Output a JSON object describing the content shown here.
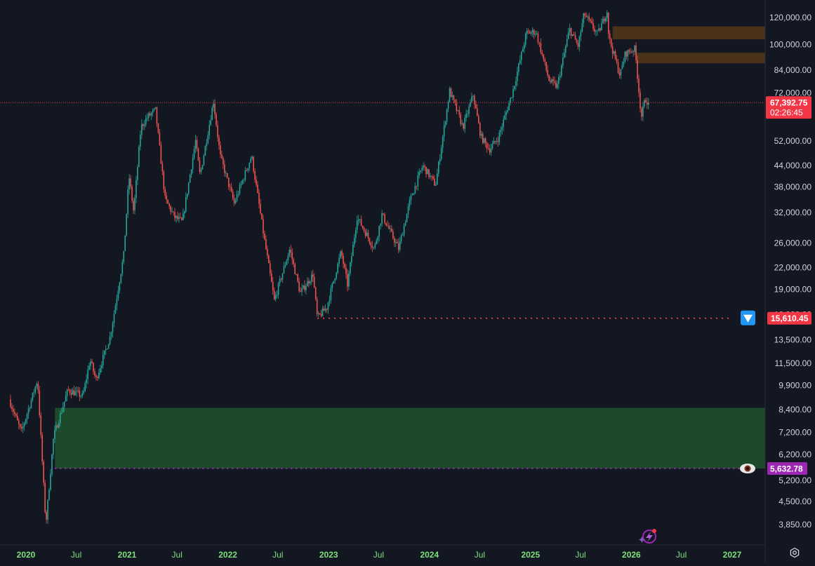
{
  "colors": {
    "background": "#131722",
    "up": "#26a69a",
    "down": "#ef5350",
    "axis_text": "#d1d4dc",
    "time_label": "#7ee07a",
    "current_price_bg": "#f23645",
    "low_level_bg": "#f23645",
    "target_bg": "#9c27b0",
    "zone_green": "#1e4a2c",
    "zone_brown": "#4a3219"
  },
  "chart_data": {
    "type": "candlestick",
    "title": "",
    "y_scale": "log",
    "ylim": [
      3500,
      142000
    ],
    "y_ticks": [
      {
        "value": 120000,
        "label": "120,000.00"
      },
      {
        "value": 100000,
        "label": "100,000.00"
      },
      {
        "value": 84000,
        "label": "84,000.00"
      },
      {
        "value": 72000,
        "label": "72,000.00"
      },
      {
        "value": 52000,
        "label": "52,000.00"
      },
      {
        "value": 44000,
        "label": "44,000.00"
      },
      {
        "value": 38000,
        "label": "38,000.00"
      },
      {
        "value": 32000,
        "label": "32,000.00"
      },
      {
        "value": 26000,
        "label": "26,000.00"
      },
      {
        "value": 22000,
        "label": "22,000.00"
      },
      {
        "value": 19000,
        "label": "19,000.00"
      },
      {
        "value": 13500,
        "label": "13,500.00"
      },
      {
        "value": 11500,
        "label": "11,500.00"
      },
      {
        "value": 9900,
        "label": "9,900.00"
      },
      {
        "value": 8400,
        "label": "8,400.00"
      },
      {
        "value": 7200,
        "label": "7,200.00"
      },
      {
        "value": 6200,
        "label": "6,200.00"
      },
      {
        "value": 5200,
        "label": "5,200.00"
      },
      {
        "value": 4500,
        "label": "4,500.00"
      },
      {
        "value": 3850,
        "label": "3,850.00"
      }
    ],
    "x_labels": [
      {
        "date": "2020-01-01",
        "label": "2020",
        "bold": true
      },
      {
        "date": "2020-07-01",
        "label": "Jul",
        "bold": false
      },
      {
        "date": "2021-01-01",
        "label": "2021",
        "bold": true
      },
      {
        "date": "2021-07-01",
        "label": "Jul",
        "bold": false
      },
      {
        "date": "2022-01-01",
        "label": "2022",
        "bold": true
      },
      {
        "date": "2022-07-01",
        "label": "Jul",
        "bold": false
      },
      {
        "date": "2023-01-01",
        "label": "2023",
        "bold": true
      },
      {
        "date": "2023-07-01",
        "label": "Jul",
        "bold": false
      },
      {
        "date": "2024-01-01",
        "label": "2024",
        "bold": true
      },
      {
        "date": "2024-07-01",
        "label": "Jul",
        "bold": false
      },
      {
        "date": "2025-01-01",
        "label": "2025",
        "bold": true
      },
      {
        "date": "2025-07-01",
        "label": "Jul",
        "bold": false
      },
      {
        "date": "2026-01-01",
        "label": "2026",
        "bold": true
      },
      {
        "date": "2026-07-01",
        "label": "Jul",
        "bold": false
      },
      {
        "date": "2027-01-01",
        "label": "2027",
        "bold": true
      }
    ],
    "price_path": [
      {
        "date": "2019-11-01",
        "price": 9000
      },
      {
        "date": "2019-12-15",
        "price": 7200
      },
      {
        "date": "2020-02-12",
        "price": 10300
      },
      {
        "date": "2020-03-13",
        "price": 3850
      },
      {
        "date": "2020-04-10",
        "price": 7000
      },
      {
        "date": "2020-06-01",
        "price": 9600
      },
      {
        "date": "2020-07-25",
        "price": 9200
      },
      {
        "date": "2020-08-20",
        "price": 11800
      },
      {
        "date": "2020-09-10",
        "price": 10300
      },
      {
        "date": "2020-11-01",
        "price": 13800
      },
      {
        "date": "2020-12-20",
        "price": 24000
      },
      {
        "date": "2021-01-08",
        "price": 41000
      },
      {
        "date": "2021-01-25",
        "price": 32000
      },
      {
        "date": "2021-02-20",
        "price": 57000
      },
      {
        "date": "2021-03-15",
        "price": 61000
      },
      {
        "date": "2021-04-14",
        "price": 64000
      },
      {
        "date": "2021-05-19",
        "price": 35000
      },
      {
        "date": "2021-06-22",
        "price": 31000
      },
      {
        "date": "2021-07-20",
        "price": 30000
      },
      {
        "date": "2021-09-06",
        "price": 52000
      },
      {
        "date": "2021-09-22",
        "price": 41000
      },
      {
        "date": "2021-11-10",
        "price": 68000
      },
      {
        "date": "2021-12-04",
        "price": 47000
      },
      {
        "date": "2022-01-24",
        "price": 34000
      },
      {
        "date": "2022-03-28",
        "price": 47000
      },
      {
        "date": "2022-05-12",
        "price": 27000
      },
      {
        "date": "2022-06-18",
        "price": 17600
      },
      {
        "date": "2022-08-13",
        "price": 25000
      },
      {
        "date": "2022-09-20",
        "price": 18500
      },
      {
        "date": "2022-11-05",
        "price": 21000
      },
      {
        "date": "2022-11-21",
        "price": 15610
      },
      {
        "date": "2022-12-25",
        "price": 16800
      },
      {
        "date": "2023-02-15",
        "price": 24500
      },
      {
        "date": "2023-03-10",
        "price": 19600
      },
      {
        "date": "2023-04-14",
        "price": 31000
      },
      {
        "date": "2023-06-15",
        "price": 25000
      },
      {
        "date": "2023-07-13",
        "price": 31500
      },
      {
        "date": "2023-09-11",
        "price": 25000
      },
      {
        "date": "2023-10-24",
        "price": 35000
      },
      {
        "date": "2023-12-08",
        "price": 44000
      },
      {
        "date": "2024-01-23",
        "price": 38500
      },
      {
        "date": "2024-03-14",
        "price": 73000
      },
      {
        "date": "2024-05-01",
        "price": 57000
      },
      {
        "date": "2024-06-07",
        "price": 71000
      },
      {
        "date": "2024-07-05",
        "price": 53500
      },
      {
        "date": "2024-08-05",
        "price": 49000
      },
      {
        "date": "2024-09-06",
        "price": 53000
      },
      {
        "date": "2024-10-29",
        "price": 73000
      },
      {
        "date": "2024-12-17",
        "price": 108000
      },
      {
        "date": "2025-01-20",
        "price": 109000
      },
      {
        "date": "2025-03-10",
        "price": 78000
      },
      {
        "date": "2025-04-07",
        "price": 75000
      },
      {
        "date": "2025-05-22",
        "price": 111000
      },
      {
        "date": "2025-06-22",
        "price": 99000
      },
      {
        "date": "2025-07-14",
        "price": 123000
      },
      {
        "date": "2025-09-01",
        "price": 107000
      },
      {
        "date": "2025-10-06",
        "price": 126000
      },
      {
        "date": "2025-10-11",
        "price": 105000
      },
      {
        "date": "2025-11-21",
        "price": 81000
      },
      {
        "date": "2025-12-10",
        "price": 94000
      },
      {
        "date": "2026-01-14",
        "price": 97000
      },
      {
        "date": "2026-02-06",
        "price": 61000
      },
      {
        "date": "2026-02-20",
        "price": 69000
      },
      {
        "date": "2026-03-05",
        "price": 67392.75
      }
    ],
    "zones": [
      {
        "name": "demand-zone",
        "from_date": "2020-04-15",
        "price_low": 5632.78,
        "price_high": 8500,
        "color": "#1e4a2c"
      },
      {
        "name": "supply-zone-upper",
        "from_date": "2025-10-25",
        "price_low": 103500,
        "price_high": 113000,
        "color": "#4a3219"
      },
      {
        "name": "supply-zone-lower",
        "from_date": "2026-01-20",
        "price_low": 88000,
        "price_high": 94500,
        "color": "#4a3219"
      }
    ]
  },
  "price_axis": {
    "current_price": {
      "value": 67392.75,
      "label": "67,392.75",
      "countdown": "02:26:45"
    },
    "low_level": {
      "value": 15610.45,
      "label": "15,610.45",
      "hidden_tick": "16,000.00"
    },
    "target_level": {
      "value": 5632.78,
      "label": "5,632.78"
    }
  },
  "icons": {
    "low_marker": "down-arrow-icon",
    "target_marker": "eye-icon",
    "assistant": "lightning-sparkle-icon",
    "settings": "gear-icon"
  }
}
